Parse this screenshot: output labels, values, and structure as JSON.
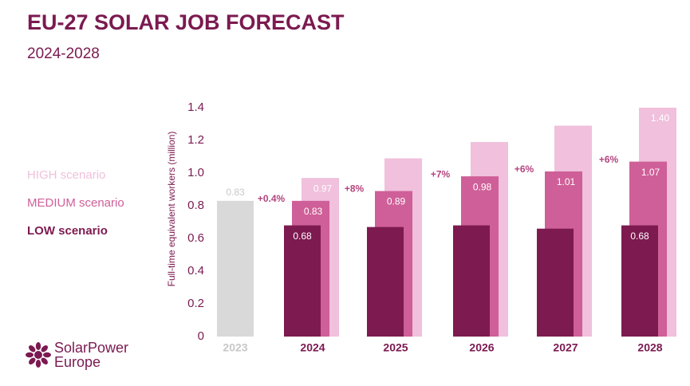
{
  "chart_data": {
    "type": "bar",
    "title": "EU-27 SOLAR JOB FORECAST",
    "subtitle": "2024-2028",
    "y_label": "Full-time equivalent workers  (million)",
    "categories": [
      "2023",
      "2024",
      "2025",
      "2026",
      "2027",
      "2028"
    ],
    "base": {
      "color": "#d9d9d9",
      "label_color": "#c8c8c8",
      "values": [
        0.83,
        null,
        null,
        null,
        null,
        null
      ],
      "value_labels": [
        "0.83",
        null,
        null,
        null,
        null,
        null
      ]
    },
    "series": [
      {
        "name": "HIGH scenario",
        "color": "#f0c0dc",
        "values": [
          null,
          0.97,
          1.09,
          1.19,
          1.29,
          1.4
        ],
        "value_labels": [
          null,
          "0.97",
          null,
          null,
          null,
          "1.40"
        ]
      },
      {
        "name": "MEDIUM scenario",
        "color": "#cf5f98",
        "values": [
          null,
          0.83,
          0.89,
          0.98,
          1.01,
          1.07
        ],
        "value_labels": [
          null,
          "0.83",
          "0.89",
          "0.98",
          "1.01",
          "1.07"
        ]
      },
      {
        "name": "LOW scenario",
        "color": "#7d1a50",
        "values": [
          null,
          0.68,
          0.67,
          0.68,
          0.66,
          0.68
        ],
        "value_labels": [
          null,
          "0.68",
          null,
          null,
          null,
          "0.68"
        ]
      }
    ],
    "growth_labels": [
      null,
      "+0.4%",
      "+8%",
      "+7%",
      "+6%",
      "+6%"
    ],
    "ylim": [
      0,
      1.4
    ],
    "yticks": [
      0,
      0.2,
      0.4,
      0.6,
      0.8,
      {
        "value": 1,
        "label": "1.0"
      },
      1.2,
      1.4
    ],
    "grid": false,
    "legend": "left",
    "logo": [
      "SolarPower",
      "Europe"
    ]
  }
}
